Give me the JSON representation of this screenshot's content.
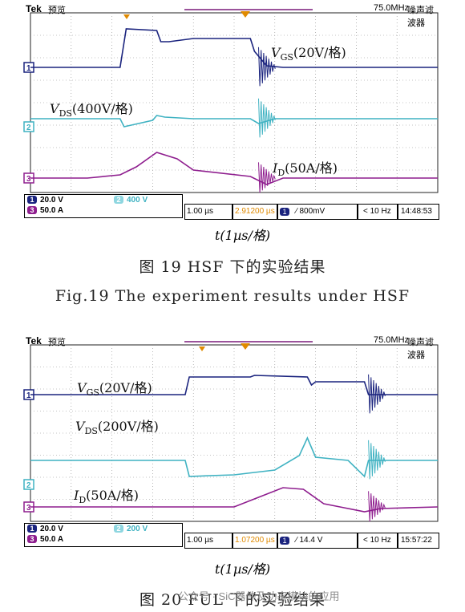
{
  "figures": [
    {
      "header": {
        "brand": "Tek",
        "mode": "预览",
        "bandwidth": "75.0MHz",
        "filter": "噪声滤波器"
      },
      "ch1_scale": "20.0 V",
      "ch2_scale": "400 V",
      "ch3_scale": "50.0 A",
      "timebase": "1.00 µs",
      "delay": "2.91200 µs",
      "trigger": "∕ 800mV",
      "rate": "< 10 Hz",
      "time": "14:48:53",
      "labels": {
        "vgs": "V",
        "vgs_sub": "GS",
        "vgs_tail": "(20V/格)",
        "vds": "V",
        "vds_sub": "DS",
        "vds_tail": "(400V/格)",
        "id": "I",
        "id_sub": "D",
        "id_tail": "(50A/格)"
      },
      "xaxis": "t(1µs/格)",
      "caption_cn": "图 19    HSF 下的实验结果",
      "caption_en": "Fig.19    The experiment results under HSF"
    },
    {
      "header": {
        "brand": "Tek",
        "mode": "预览",
        "bandwidth": "75.0MHz",
        "filter": "噪声滤波器"
      },
      "ch1_scale": "20.0 V",
      "ch2_scale": "200 V",
      "ch3_scale": "50.0 A",
      "timebase": "1.00 µs",
      "delay": "1.07200 µs",
      "trigger": "∕ 14.4 V",
      "rate": "< 10 Hz",
      "time": "15:57:22",
      "labels": {
        "vgs": "V",
        "vgs_sub": "GS",
        "vgs_tail": "(20V/格)",
        "vds": "V",
        "vds_sub": "DS",
        "vds_tail": "(200V/格)",
        "id": "I",
        "id_sub": "D",
        "id_tail": "(50A/格)"
      },
      "xaxis": "t(1µs/格)",
      "caption_cn": "图 20    FUL 下的实验结果"
    }
  ],
  "watermark": "公众号 · SiC器件及功率模块的应用",
  "colors": {
    "ch1": "#1a237e",
    "ch2": "#3fb2c2",
    "ch3": "#8e1d8e",
    "grid": "#8a8a8a",
    "trig": "#7a1a7a",
    "orange": "#e08a00"
  },
  "chart_data": [
    {
      "type": "line",
      "title": "HSF 下的实验结果",
      "xlabel": "t(1µs/格)",
      "x_unit": "div",
      "series": [
        {
          "name": "V_GS (20V/格)",
          "x": [
            0,
            2.2,
            2.35,
            3.1,
            3.2,
            3.4,
            4.0,
            5.4,
            5.5,
            5.8,
            6.2,
            10
          ],
          "y": [
            0,
            0,
            2.4,
            2.3,
            1.6,
            1.6,
            1.8,
            1.8,
            1.0,
            0.1,
            0,
            0
          ]
        },
        {
          "name": "V_DS (400V/格)",
          "x": [
            0,
            2.2,
            2.3,
            3.0,
            3.1,
            3.3,
            4.0,
            5.4,
            5.6,
            6.0,
            10
          ],
          "y": [
            0,
            0,
            -0.5,
            -0.1,
            0.2,
            0.1,
            0.0,
            0.0,
            -0.3,
            0,
            0
          ]
        },
        {
          "name": "I_D (50A/格)",
          "x": [
            0,
            1.4,
            2.2,
            2.6,
            3.1,
            3.6,
            4.0,
            5.4,
            5.8,
            6.2,
            10
          ],
          "y": [
            0,
            0,
            0.2,
            0.7,
            1.6,
            1.2,
            0.5,
            0.1,
            -0.4,
            0,
            0
          ]
        }
      ]
    },
    {
      "type": "line",
      "title": "FUL 下的实验结果",
      "xlabel": "t(1µs/格)",
      "x_unit": "div",
      "series": [
        {
          "name": "V_GS (20V/格)",
          "x": [
            0,
            3.8,
            3.9,
            5.4,
            5.5,
            6.8,
            6.9,
            7.0,
            8.2,
            8.3,
            8.8,
            10
          ],
          "y": [
            0,
            0,
            1.1,
            1.1,
            1.2,
            1.1,
            0.6,
            0.8,
            0.8,
            0,
            0,
            0
          ]
        },
        {
          "name": "V_DS (200V/格)",
          "x": [
            0,
            3.8,
            3.9,
            5.0,
            6.0,
            6.6,
            6.8,
            7.0,
            7.8,
            8.2,
            8.3,
            10
          ],
          "y": [
            0,
            0,
            -1.0,
            -0.9,
            -0.6,
            0.3,
            1.4,
            0.2,
            0.0,
            -1.0,
            0,
            0
          ]
        },
        {
          "name": "I_D (50A/格)",
          "x": [
            0,
            5.0,
            5.6,
            6.2,
            6.7,
            7.2,
            7.6,
            8.2,
            8.6,
            10
          ],
          "y": [
            0,
            0,
            0.6,
            1.2,
            1.1,
            0.2,
            0,
            -0.3,
            -0.1,
            0
          ]
        }
      ]
    }
  ]
}
